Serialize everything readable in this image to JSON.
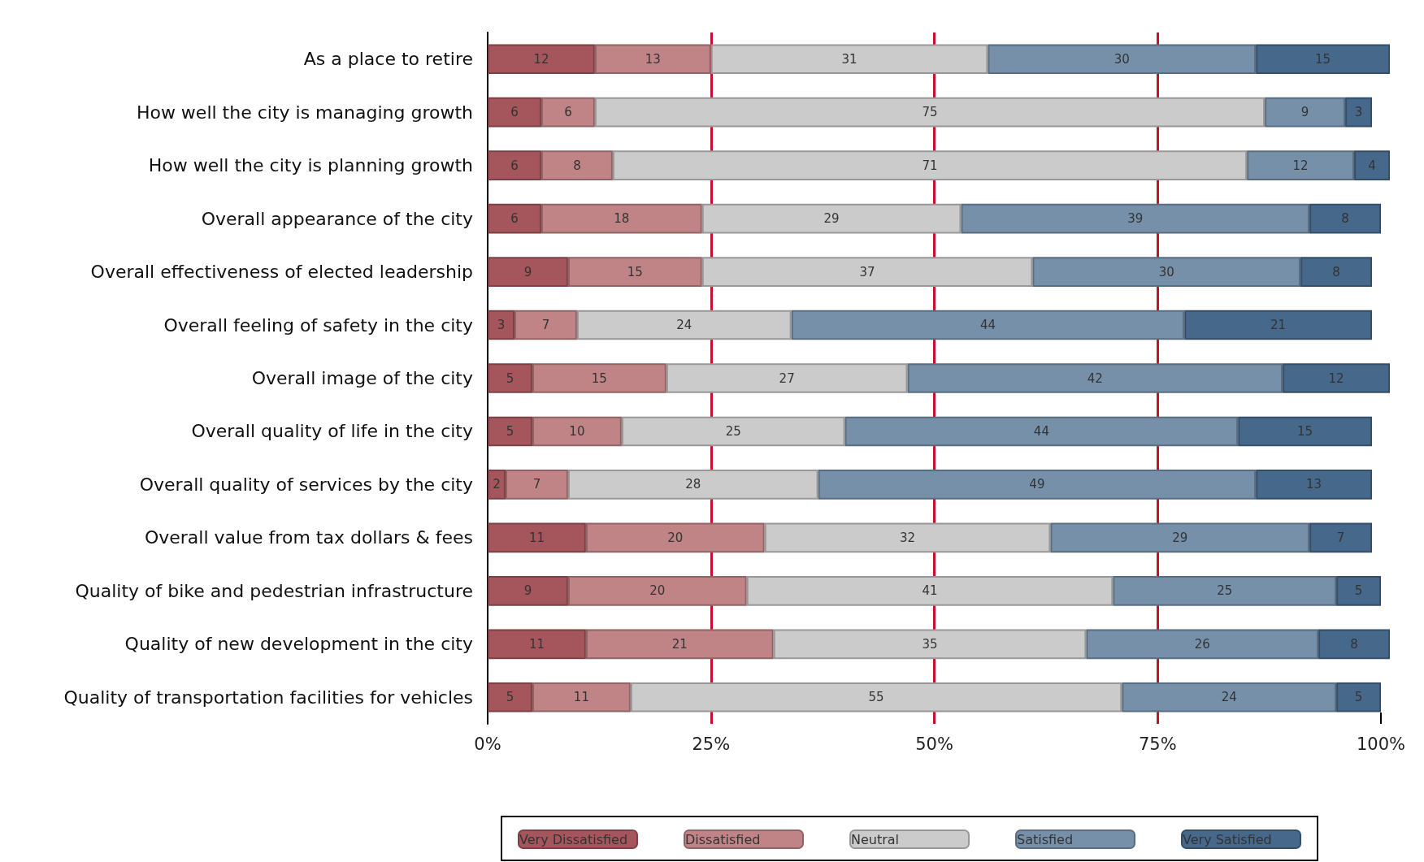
{
  "chart_data": {
    "type": "bar",
    "orientation": "horizontal",
    "stacked": true,
    "data_labels": true,
    "grid": false,
    "legend": "bottom",
    "categories": [
      "As a place to retire",
      "How well the city is managing growth",
      "How well the city is planning growth",
      "Overall appearance of the city",
      "Overall effectiveness of elected leadership",
      "Overall feeling of safety in the city",
      "Overall image of the city",
      "Overall quality of life in the city",
      "Overall quality of services by the city",
      "Overall value from tax dollars & fees",
      "Quality of bike and pedestrian infrastructure",
      "Quality of new development in the city",
      "Quality of transportation facilities for vehicles"
    ],
    "series": [
      {
        "name": "Very Dissatisfied",
        "color": "#a4565c",
        "values": [
          12,
          6,
          6,
          6,
          9,
          3,
          5,
          5,
          2,
          11,
          9,
          11,
          5
        ]
      },
      {
        "name": "Dissatisfied",
        "color": "#c08487",
        "values": [
          13,
          6,
          8,
          18,
          15,
          7,
          15,
          10,
          7,
          20,
          20,
          21,
          11
        ]
      },
      {
        "name": "Neutral",
        "color": "#cbcbcb",
        "values": [
          31,
          75,
          71,
          29,
          37,
          24,
          27,
          25,
          28,
          32,
          41,
          35,
          55
        ]
      },
      {
        "name": "Satisfied",
        "color": "#7690aa",
        "values": [
          30,
          9,
          12,
          39,
          30,
          44,
          42,
          44,
          49,
          29,
          25,
          26,
          24
        ]
      },
      {
        "name": "Very Satisfied",
        "color": "#46688a",
        "values": [
          15,
          3,
          4,
          8,
          8,
          21,
          12,
          15,
          13,
          7,
          5,
          8,
          5
        ]
      }
    ],
    "xlim": [
      0,
      101
    ],
    "xticks": [
      {
        "value": 0,
        "label": "0%"
      },
      {
        "value": 25,
        "label": "25%"
      },
      {
        "value": 50,
        "label": "50%"
      },
      {
        "value": 75,
        "label": "75%"
      },
      {
        "value": 100,
        "label": "100%"
      }
    ],
    "ref_lines": [
      {
        "axis": "x",
        "value": 25,
        "color": "#c8102e"
      },
      {
        "axis": "x",
        "value": 50,
        "color": "#c8102e"
      },
      {
        "axis": "x",
        "value": 75,
        "color": "#c8102e"
      }
    ]
  }
}
